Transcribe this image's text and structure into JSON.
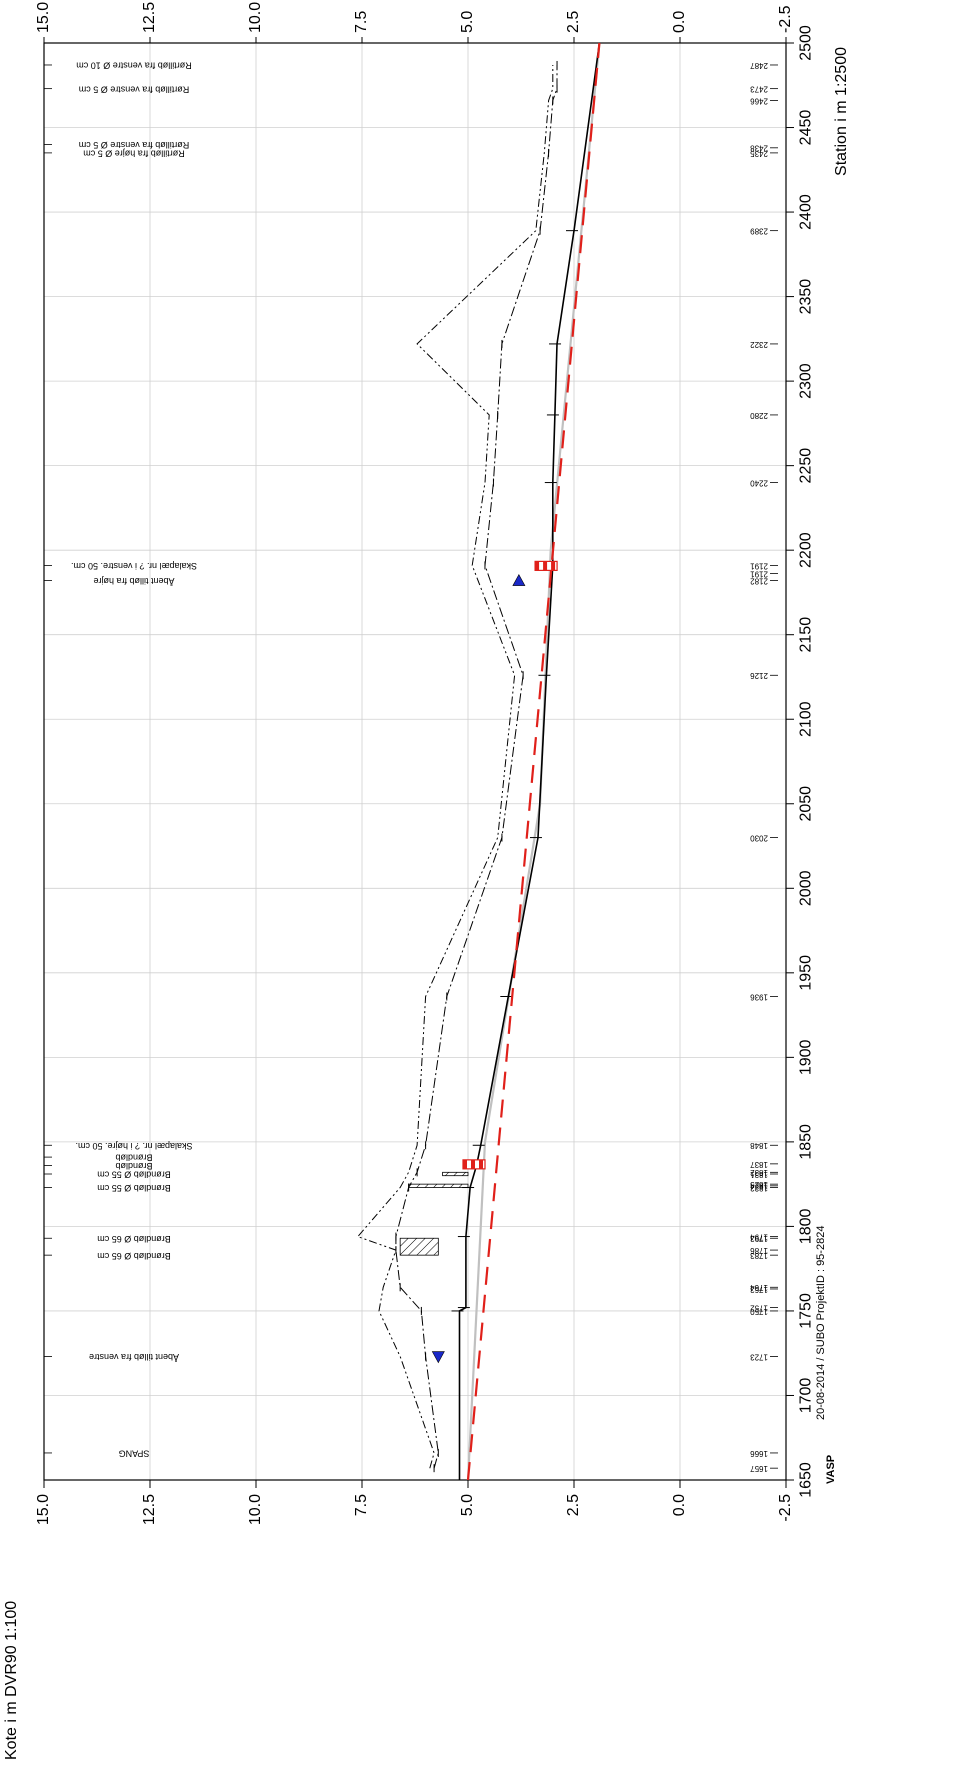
{
  "chart_data": {
    "type": "line",
    "xlabel": "Station i m 1:2500",
    "ylabel": "Kote i m DVR90 1:100",
    "xlim": [
      1650,
      2500
    ],
    "ylim": [
      -2.5,
      15
    ],
    "x_ticks": [
      "1650",
      "1700",
      "1750",
      "1800",
      "1850",
      "1900",
      "1950",
      "2000",
      "2050",
      "2100",
      "2150",
      "2200",
      "2250",
      "2300",
      "2350",
      "2400",
      "2450",
      "2500"
    ],
    "y_ticks": [
      "-2.5",
      "0.0",
      "2.5",
      "5.0",
      "7.5",
      "10.0",
      "12.5",
      "15.0"
    ],
    "footer_left": "VASP",
    "footer_right": "20-08-2014 / SUBO   ProjektID : 95-2824",
    "series": [
      {
        "key": "terrain_left",
        "x": [
          1657,
          1666,
          1723,
          1750,
          1764,
          1786,
          1794,
          1823,
          1832,
          1848,
          1936,
          2030,
          2126,
          2191,
          2240,
          2280,
          2322,
          2389,
          2435,
          2466,
          2473,
          2487
        ],
        "y": [
          5.9,
          5.8,
          6.6,
          7.1,
          7.0,
          6.7,
          7.6,
          6.6,
          6.4,
          6.2,
          6.0,
          4.3,
          3.9,
          4.9,
          4.6,
          4.5,
          6.2,
          3.4,
          3.2,
          3.1,
          3.0,
          3.0
        ]
      },
      {
        "key": "terrain_right",
        "x": [
          1657,
          1666,
          1723,
          1750,
          1764,
          1786,
          1794,
          1823,
          1832,
          1848,
          1936,
          2030,
          2126,
          2191,
          2240,
          2280,
          2322,
          2389,
          2435,
          2466,
          2473,
          2487
        ],
        "y": [
          5.8,
          5.7,
          6.0,
          6.1,
          6.6,
          6.7,
          6.7,
          6.4,
          6.2,
          6.0,
          5.5,
          4.2,
          3.7,
          4.6,
          4.4,
          4.3,
          4.2,
          3.3,
          3.1,
          3.0,
          2.9,
          2.9
        ]
      },
      {
        "key": "pipe_bottom",
        "x": [
          1650,
          1750,
          1752,
          1794,
          1823,
          1836,
          1848,
          1936,
          2030,
          2126,
          2191,
          2240,
          2280,
          2322,
          2389,
          2500
        ],
        "y": [
          5.2,
          5.2,
          5.05,
          5.05,
          4.95,
          4.8,
          4.7,
          4.05,
          3.35,
          3.15,
          3.0,
          3.0,
          2.95,
          2.9,
          2.5,
          1.9
        ]
      },
      {
        "key": "design_red",
        "x": [
          1650,
          2500
        ],
        "y": [
          5.0,
          1.9
        ]
      },
      {
        "key": "grey_line",
        "x": [
          1650,
          1850,
          2050,
          2200,
          2500
        ],
        "y": [
          5.0,
          4.6,
          3.3,
          3.05,
          1.9
        ]
      }
    ],
    "stations": [
      "1657",
      "1666",
      "1723",
      "1750",
      "1752",
      "1763",
      "1764",
      "1783",
      "1786",
      "1793",
      "1794",
      "1823",
      "1824",
      "1825",
      "1831",
      "1832",
      "1837",
      "1848",
      "1936",
      "2030",
      "2126",
      "2182",
      "2191",
      "2191",
      "2240",
      "2280",
      "2322",
      "2389",
      "2435",
      "2438",
      "2466",
      "2473",
      "2487"
    ],
    "annotations": [
      {
        "x": 1666,
        "text": "SPANG"
      },
      {
        "x": 1723,
        "text": "Åbent tilløb fra venstre"
      },
      {
        "x": 1783,
        "text": "Brøndløb Ø 65 cm"
      },
      {
        "x": 1793,
        "text": "Brøndløb Ø 65 cm"
      },
      {
        "x": 1823,
        "text": "Brøndløb Ø 55 cm"
      },
      {
        "x": 1831,
        "text": "Brøndløb Ø 55 cm"
      },
      {
        "x": 1836,
        "text": "Brøndløb"
      },
      {
        "x": 1841,
        "text": "Brøndløb"
      },
      {
        "x": 1848,
        "text": "Skalapæl nr. ? i højre. 50 cm."
      },
      {
        "x": 2182,
        "text": "Åbent tilløb fra højre"
      },
      {
        "x": 2191,
        "text": "Skalapæl nr. ? i venstre. 50 cm."
      },
      {
        "x": 2435,
        "text": "Rørtilløb fra højre Ø 5 cm"
      },
      {
        "x": 2440,
        "text": "Rørtilløb fra venstre Ø 5 cm"
      },
      {
        "x": 2473,
        "text": "Rørtilløb fra venstre Ø 5 cm"
      },
      {
        "x": 2487,
        "text": "Rørtilløb fra venstre Ø 10 cm"
      }
    ],
    "colors": {
      "design": "#e0201a",
      "grey": "#c0c0c0",
      "marker": "#1a28c8",
      "line": "#000000"
    }
  }
}
